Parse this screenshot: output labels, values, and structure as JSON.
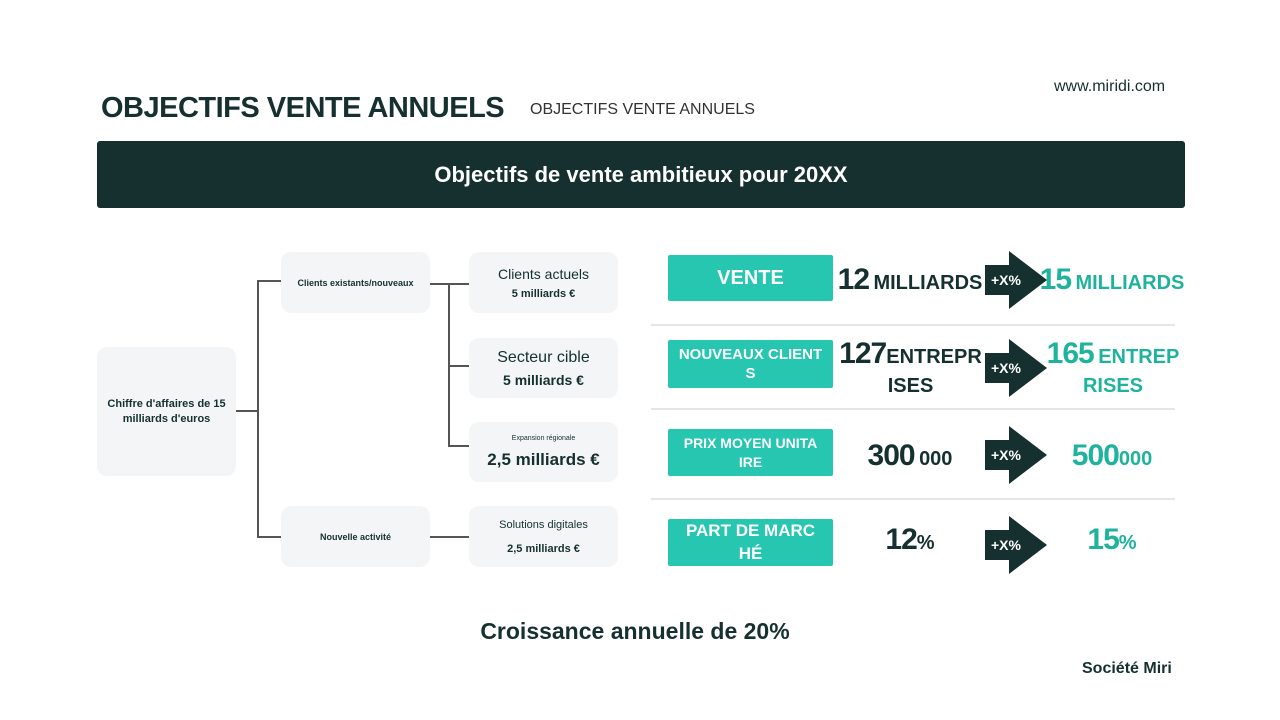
{
  "header": {
    "title": "OBJECTIFS VENTE ANNUELS",
    "title_ghost": "OBJECTIFS VENTE ANNUELS",
    "url": "www.miridi.com"
  },
  "banner": "Objectifs de vente ambitieux pour 20XX",
  "tree": {
    "root": "Chiffre d'affaires de 15 milliards d'euros",
    "branches": [
      {
        "label": "Clients existants/nouveaux",
        "children": [
          {
            "title": "Clients actuels",
            "value": "5 milliards €"
          },
          {
            "title": "Secteur cible",
            "value": "5 milliards €"
          },
          {
            "title": "Expansion régionale",
            "value": "2,5 milliards €"
          }
        ]
      },
      {
        "label": "Nouvelle activité",
        "children": [
          {
            "title": "Solutions digitales",
            "value": "2,5 milliards €"
          }
        ]
      }
    ]
  },
  "targets": [
    {
      "label": "VENTE",
      "from_num": "12",
      "from_unit": "MILLIARDS",
      "change": "+X%",
      "to_num": "15",
      "to_unit": "MILLIARDS"
    },
    {
      "label": "NOUVEAUX CLIENTS",
      "from_num": "127",
      "from_unit": "ENTREPRISES",
      "change": "+X%",
      "to_num": "165",
      "to_unit": "ENTREPRISES"
    },
    {
      "label": "PRIX MOYEN UNITAIRE",
      "from_num": "300",
      "from_unit": "000",
      "change": "+X%",
      "to_num": "500",
      "to_unit": "000"
    },
    {
      "label": "PART DE MARCHÉ",
      "from_num": "12",
      "from_unit": "%",
      "change": "+X%",
      "to_num": "15",
      "to_unit": "%"
    }
  ],
  "footer": {
    "growth": "Croissance annuelle de 20%",
    "company": "Société Miri"
  },
  "colors": {
    "dark": "#15302f",
    "teal": "#26c6b0",
    "box": "#f3f5f6"
  }
}
